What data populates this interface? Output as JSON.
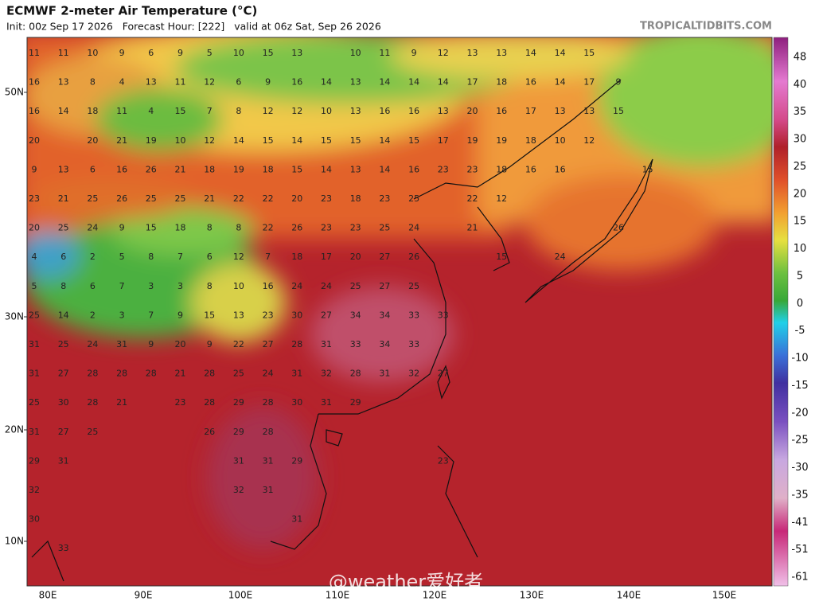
{
  "header": {
    "title": "ECMWF 2-meter Air Temperature (°C)",
    "run_info": "Init: 00z Sep 17 2026   Forecast Hour: [222]   valid at 06z Sat, Sep 26 2026",
    "site": "TROPICALTIDBITS.COM"
  },
  "map": {
    "temperature_rows": [
      [
        11,
        11,
        10,
        9,
        6,
        9,
        5,
        10,
        15,
        13,
        null,
        10,
        11,
        9,
        12,
        13,
        13,
        14,
        14,
        15
      ],
      [
        16,
        13,
        8,
        4,
        13,
        11,
        12,
        6,
        9,
        16,
        14,
        13,
        14,
        14,
        14,
        17,
        18,
        16,
        14,
        17,
        9
      ],
      [
        16,
        14,
        18,
        11,
        4,
        15,
        7,
        8,
        12,
        12,
        10,
        13,
        16,
        16,
        13,
        20,
        16,
        17,
        13,
        13,
        15
      ],
      [
        20,
        null,
        20,
        21,
        19,
        10,
        12,
        14,
        15,
        14,
        15,
        15,
        14,
        15,
        17,
        19,
        19,
        18,
        10,
        12
      ],
      [
        9,
        13,
        6,
        16,
        26,
        21,
        18,
        19,
        18,
        15,
        14,
        13,
        14,
        16,
        23,
        23,
        18,
        16,
        16,
        null,
        null,
        15
      ],
      [
        23,
        21,
        25,
        26,
        25,
        25,
        21,
        22,
        22,
        20,
        23,
        18,
        23,
        25,
        null,
        22,
        12
      ],
      [
        20,
        25,
        24,
        9,
        15,
        18,
        8,
        8,
        22,
        26,
        23,
        23,
        25,
        24,
        null,
        21,
        null,
        null,
        null,
        null,
        26
      ],
      [
        4,
        6,
        2,
        5,
        8,
        7,
        6,
        12,
        7,
        18,
        17,
        20,
        27,
        26,
        null,
        null,
        15,
        null,
        24
      ],
      [
        5,
        8,
        6,
        7,
        3,
        3,
        8,
        10,
        16,
        24,
        24,
        25,
        27,
        25
      ],
      [
        25,
        14,
        2,
        3,
        7,
        9,
        15,
        13,
        23,
        30,
        27,
        34,
        34,
        33,
        33
      ],
      [
        31,
        25,
        24,
        31,
        9,
        20,
        9,
        22,
        27,
        28,
        31,
        33,
        34,
        33
      ],
      [
        31,
        27,
        28,
        28,
        28,
        21,
        28,
        25,
        24,
        31,
        32,
        28,
        31,
        32,
        27
      ],
      [
        25,
        30,
        28,
        21,
        null,
        23,
        28,
        29,
        28,
        30,
        31,
        29
      ],
      [
        31,
        27,
        25,
        null,
        null,
        null,
        26,
        29,
        28
      ],
      [
        29,
        31,
        null,
        null,
        null,
        null,
        null,
        31,
        31,
        29,
        null,
        null,
        null,
        null,
        23
      ],
      [
        32,
        null,
        null,
        null,
        null,
        null,
        null,
        32,
        31
      ],
      [
        30,
        null,
        null,
        null,
        null,
        null,
        null,
        null,
        null,
        31
      ],
      [
        null,
        33
      ]
    ],
    "lat_labels": [
      "50N",
      "30N",
      "20N",
      "10N"
    ],
    "lon_labels": [
      "80E",
      "90E",
      "100E",
      "110E",
      "120E",
      "130E",
      "140E",
      "150E"
    ]
  },
  "colorbar": {
    "labels": [
      "48",
      "40",
      "35",
      "30",
      "25",
      "20",
      "15",
      "10",
      "5",
      "0",
      "-5",
      "-10",
      "-15",
      "-20",
      "-25",
      "-30",
      "-35",
      "-41",
      "-51",
      "-61"
    ]
  },
  "watermark": "@weather爱好者"
}
